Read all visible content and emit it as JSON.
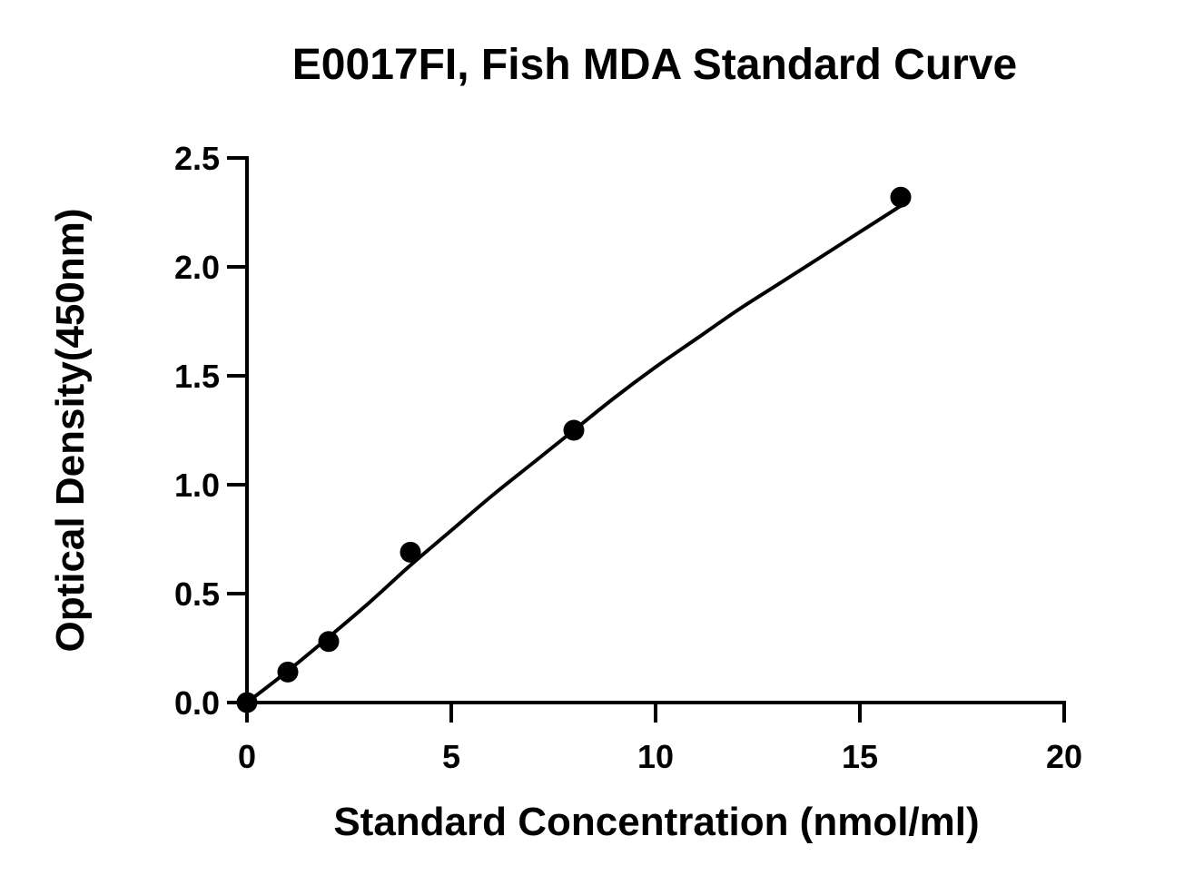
{
  "chart_data": {
    "type": "scatter",
    "title": "E0017FI, Fish MDA Standard Curve",
    "xlabel": "Standard Concentration (nmol/ml)",
    "ylabel": "Optical Density(450nm)",
    "xlim": [
      0,
      20
    ],
    "ylim": [
      0,
      2.5
    ],
    "xticks": [
      0,
      5,
      10,
      15,
      20
    ],
    "yticks": [
      0.0,
      0.5,
      1.0,
      1.5,
      2.0,
      2.5
    ],
    "xtick_labels": [
      "0",
      "5",
      "10",
      "15",
      "20"
    ],
    "ytick_labels": [
      "0.0",
      "0.5",
      "1.0",
      "1.5",
      "2.0",
      "2.5"
    ],
    "series": [
      {
        "points": [
          {
            "x": 0,
            "y": 0.0
          },
          {
            "x": 1,
            "y": 0.14
          },
          {
            "x": 2,
            "y": 0.28
          },
          {
            "x": 4,
            "y": 0.69
          },
          {
            "x": 8,
            "y": 1.25
          },
          {
            "x": 16,
            "y": 2.32
          }
        ],
        "color": "#000000"
      }
    ],
    "fit_curve": {
      "type": "smooth",
      "color": "#000000",
      "points": [
        {
          "x": 0,
          "y": 0.0
        },
        {
          "x": 1,
          "y": 0.145
        },
        {
          "x": 2,
          "y": 0.3
        },
        {
          "x": 3,
          "y": 0.46
        },
        {
          "x": 4,
          "y": 0.63
        },
        {
          "x": 5,
          "y": 0.79
        },
        {
          "x": 6,
          "y": 0.95
        },
        {
          "x": 7,
          "y": 1.1
        },
        {
          "x": 8,
          "y": 1.25
        },
        {
          "x": 9,
          "y": 1.4
        },
        {
          "x": 10,
          "y": 1.54
        },
        {
          "x": 11,
          "y": 1.67
        },
        {
          "x": 12,
          "y": 1.8
        },
        {
          "x": 13,
          "y": 1.92
        },
        {
          "x": 14,
          "y": 2.04
        },
        {
          "x": 15,
          "y": 2.16
        },
        {
          "x": 16,
          "y": 2.28
        }
      ]
    },
    "grid": false,
    "legend": "none"
  }
}
